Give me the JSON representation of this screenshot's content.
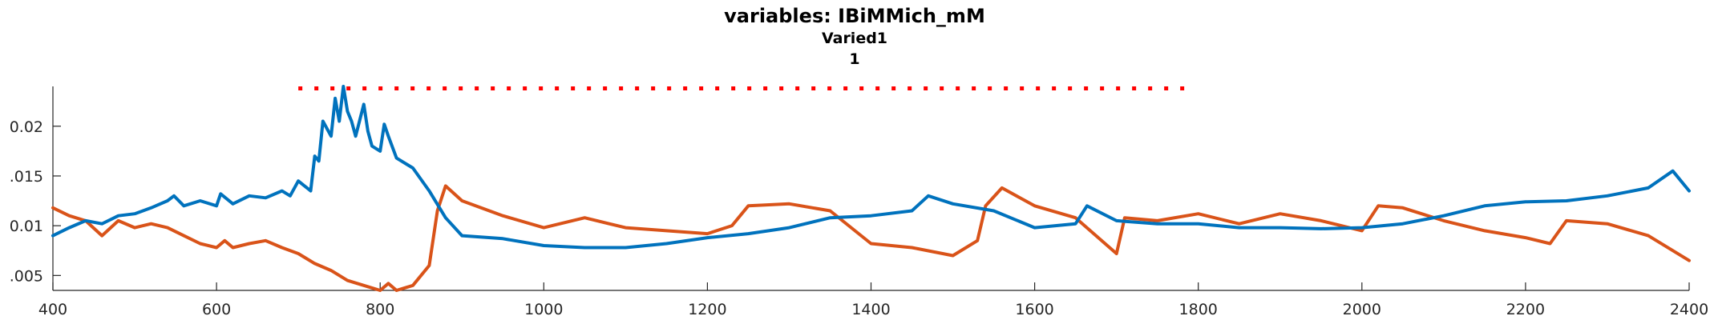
{
  "chart_data": {
    "type": "line",
    "title": "variables: IBiMMich_mM",
    "subtitle_1": "Varied1",
    "subtitle_2": "1",
    "xlim": [
      400,
      2400
    ],
    "ylim": [
      0.0035,
      0.024
    ],
    "x_ticks": [
      400,
      600,
      800,
      1000,
      1200,
      1400,
      1600,
      1800,
      2000,
      2200,
      2400
    ],
    "x_tick_labels": [
      "400",
      "600",
      "800",
      "1000",
      "1200",
      "1400",
      "1600",
      "1800",
      "2000",
      "2200",
      "2400"
    ],
    "y_ticks": [
      0.005,
      0.01,
      0.015,
      0.02
    ],
    "y_tick_labels": [
      ".005",
      "0.01",
      ".015",
      "0.02"
    ],
    "colors": {
      "series1": "#0072BD",
      "series2": "#D95319",
      "marker_line": "#FF0000"
    },
    "series": [
      {
        "x": [
          400,
          420,
          440,
          460,
          480,
          500,
          520,
          540,
          548,
          560,
          580,
          600,
          605,
          620,
          640,
          660,
          680,
          690,
          700,
          715,
          720,
          725,
          730,
          740,
          745,
          750,
          755,
          760,
          765,
          770,
          780,
          785,
          790,
          800,
          805,
          810,
          820,
          840,
          860,
          880,
          900,
          950,
          1000,
          1050,
          1100,
          1150,
          1200,
          1250,
          1300,
          1350,
          1400,
          1450,
          1470,
          1500,
          1550,
          1600,
          1650,
          1664,
          1700,
          1750,
          1800,
          1850,
          1900,
          1950,
          2000,
          2050,
          2100,
          2150,
          2200,
          2250,
          2300,
          2350,
          2380,
          2390,
          2400
        ],
        "y": [
          0.009,
          0.0098,
          0.0105,
          0.0102,
          0.011,
          0.0112,
          0.0118,
          0.0125,
          0.013,
          0.012,
          0.0125,
          0.012,
          0.0132,
          0.0122,
          0.013,
          0.0128,
          0.0135,
          0.013,
          0.0145,
          0.0135,
          0.017,
          0.0165,
          0.0205,
          0.019,
          0.0228,
          0.0205,
          0.024,
          0.0215,
          0.0205,
          0.019,
          0.0222,
          0.0195,
          0.018,
          0.0175,
          0.0202,
          0.019,
          0.0168,
          0.0158,
          0.0135,
          0.0108,
          0.009,
          0.0087,
          0.008,
          0.0078,
          0.0078,
          0.0082,
          0.0088,
          0.0092,
          0.0098,
          0.0108,
          0.011,
          0.0115,
          0.013,
          0.0122,
          0.0115,
          0.0098,
          0.0102,
          0.012,
          0.0105,
          0.0102,
          0.0102,
          0.0098,
          0.0098,
          0.0097,
          0.0098,
          0.0102,
          0.011,
          0.012,
          0.0124,
          0.0125,
          0.013,
          0.0138,
          0.0155,
          0.0145,
          0.0135
        ]
      },
      {
        "x": [
          400,
          420,
          440,
          460,
          480,
          500,
          520,
          540,
          560,
          580,
          600,
          610,
          620,
          640,
          660,
          680,
          700,
          720,
          740,
          760,
          780,
          800,
          810,
          820,
          840,
          860,
          870,
          880,
          900,
          950,
          1000,
          1050,
          1100,
          1150,
          1200,
          1230,
          1250,
          1300,
          1350,
          1400,
          1450,
          1500,
          1530,
          1540,
          1560,
          1600,
          1650,
          1700,
          1710,
          1750,
          1800,
          1850,
          1900,
          1950,
          2000,
          2020,
          2050,
          2100,
          2150,
          2200,
          2230,
          2250,
          2300,
          2350,
          2400
        ],
        "y": [
          0.0118,
          0.011,
          0.0105,
          0.009,
          0.0105,
          0.0098,
          0.0102,
          0.0098,
          0.009,
          0.0082,
          0.0078,
          0.0085,
          0.0078,
          0.0082,
          0.0085,
          0.0078,
          0.0072,
          0.0062,
          0.0055,
          0.0045,
          0.004,
          0.0035,
          0.0042,
          0.0035,
          0.004,
          0.006,
          0.0115,
          0.014,
          0.0125,
          0.011,
          0.0098,
          0.0108,
          0.0098,
          0.0095,
          0.0092,
          0.01,
          0.012,
          0.0122,
          0.0115,
          0.0082,
          0.0078,
          0.007,
          0.0085,
          0.012,
          0.0138,
          0.012,
          0.0108,
          0.0072,
          0.0108,
          0.0105,
          0.0112,
          0.0102,
          0.0112,
          0.0105,
          0.0095,
          0.012,
          0.0118,
          0.0105,
          0.0095,
          0.0088,
          0.0082,
          0.0105,
          0.0102,
          0.009,
          0.0065
        ]
      }
    ],
    "marker_line": {
      "y": 0.0238,
      "x_start": 700,
      "x_end": 1790,
      "style": "dotted"
    }
  }
}
